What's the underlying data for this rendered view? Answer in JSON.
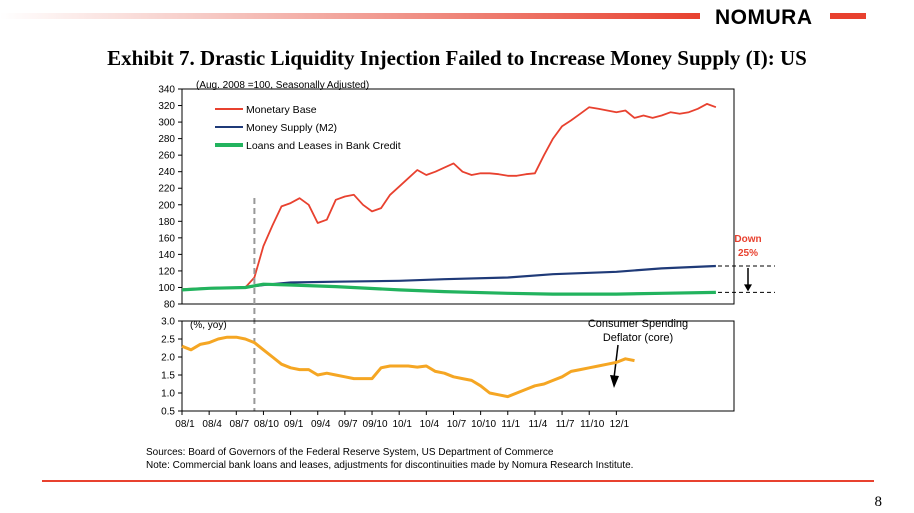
{
  "header": {
    "logo_text": "NOMURA",
    "title": "Exhibit 7.  Drastic Liquidity Injection Failed to Increase Money Supply (I): US"
  },
  "footer": {
    "source_line": "Sources: Board of Governors of the Federal Reserve System, US Department of Commerce",
    "note_line": "Note: Commercial bank loans and leases, adjustments for discontinuities made by Nomura Research Institute.",
    "page_number": "8"
  },
  "colors": {
    "accent": "#e8412f",
    "monetary_base": "#e8412f",
    "money_supply": "#1f3a78",
    "loans": "#22b35e",
    "deflator": "#f5a623"
  },
  "chart_data": [
    {
      "type": "line",
      "unit_note": "(Aug. 2008 =100, Seasonally Adjusted)",
      "ylim": [
        80,
        340
      ],
      "yticks": [
        80,
        100,
        120,
        140,
        160,
        180,
        200,
        220,
        240,
        260,
        280,
        300,
        320,
        340
      ],
      "x_range": [
        "2008-01",
        "2013-02"
      ],
      "legend_position": "top-left",
      "vline_x": "2008-09",
      "annotation": {
        "label_line1": "Down",
        "label_line2": "25%",
        "from": 126,
        "to": 94
      },
      "series": [
        {
          "name": "Monetary Base",
          "color": "#e8412f",
          "points": [
            [
              "2008-01",
              98
            ],
            [
              "2008-03",
              99
            ],
            [
              "2008-05",
              100
            ],
            [
              "2008-07",
              100
            ],
            [
              "2008-08",
              100
            ],
            [
              "2008-09",
              112
            ],
            [
              "2008-10",
              150
            ],
            [
              "2008-11",
              175
            ],
            [
              "2008-12",
              198
            ],
            [
              "2009-01",
              202
            ],
            [
              "2009-02",
              208
            ],
            [
              "2009-03",
              200
            ],
            [
              "2009-04",
              178
            ],
            [
              "2009-05",
              182
            ],
            [
              "2009-06",
              206
            ],
            [
              "2009-07",
              210
            ],
            [
              "2009-08",
              212
            ],
            [
              "2009-09",
              200
            ],
            [
              "2009-10",
              192
            ],
            [
              "2009-11",
              196
            ],
            [
              "2009-12",
              212
            ],
            [
              "2010-01",
              222
            ],
            [
              "2010-02",
              232
            ],
            [
              "2010-03",
              242
            ],
            [
              "2010-04",
              236
            ],
            [
              "2010-05",
              240
            ],
            [
              "2010-06",
              245
            ],
            [
              "2010-07",
              250
            ],
            [
              "2010-08",
              240
            ],
            [
              "2010-09",
              236
            ],
            [
              "2010-10",
              238
            ],
            [
              "2010-11",
              238
            ],
            [
              "2010-12",
              237
            ],
            [
              "2011-01",
              235
            ],
            [
              "2011-02",
              235
            ],
            [
              "2011-03",
              237
            ],
            [
              "2011-04",
              238
            ],
            [
              "2011-05",
              260
            ],
            [
              "2011-06",
              280
            ],
            [
              "2011-07",
              295
            ],
            [
              "2011-08",
              302
            ],
            [
              "2011-09",
              310
            ],
            [
              "2011-10",
              318
            ],
            [
              "2011-11",
              316
            ],
            [
              "2011-12",
              314
            ],
            [
              "2012-01",
              312
            ],
            [
              "2012-02",
              314
            ],
            [
              "2012-03",
              305
            ],
            [
              "2012-04",
              308
            ],
            [
              "2012-05",
              305
            ],
            [
              "2012-06",
              308
            ],
            [
              "2012-07",
              312
            ],
            [
              "2012-08",
              310
            ],
            [
              "2012-09",
              312
            ],
            [
              "2012-10",
              316
            ],
            [
              "2012-11",
              322
            ],
            [
              "2012-12",
              318
            ]
          ]
        },
        {
          "name": "Money Supply (M2)",
          "color": "#1f3a78",
          "points": [
            [
              "2008-01",
              97
            ],
            [
              "2008-04",
              99
            ],
            [
              "2008-08",
              100
            ],
            [
              "2008-10",
              103
            ],
            [
              "2009-01",
              106
            ],
            [
              "2009-06",
              107
            ],
            [
              "2010-01",
              108
            ],
            [
              "2010-06",
              110
            ],
            [
              "2011-01",
              112
            ],
            [
              "2011-06",
              116
            ],
            [
              "2012-01",
              119
            ],
            [
              "2012-06",
              123
            ],
            [
              "2012-12",
              126
            ]
          ]
        },
        {
          "name": "Loans and Leases in Bank Credit",
          "color": "#22b35e",
          "points": [
            [
              "2008-01",
              97
            ],
            [
              "2008-04",
              99
            ],
            [
              "2008-08",
              100
            ],
            [
              "2008-10",
              104
            ],
            [
              "2009-01",
              103
            ],
            [
              "2009-06",
              101
            ],
            [
              "2010-01",
              97
            ],
            [
              "2010-06",
              95
            ],
            [
              "2011-01",
              93
            ],
            [
              "2011-06",
              92
            ],
            [
              "2012-01",
              92
            ],
            [
              "2012-06",
              93
            ],
            [
              "2012-12",
              94
            ]
          ]
        }
      ]
    },
    {
      "type": "line",
      "unit_note": "(%, yoy)",
      "ylim": [
        0.5,
        3.0
      ],
      "yticks": [
        "0.5",
        "1.0",
        "1.5",
        "2.0",
        "2.5",
        "3.0"
      ],
      "x_range": [
        "2008-01",
        "2013-02"
      ],
      "categories": [
        "08/1",
        "08/4",
        "08/7",
        "08/10",
        "09/1",
        "09/4",
        "09/7",
        "09/10",
        "10/1",
        "10/4",
        "10/7",
        "10/10",
        "11/1",
        "11/4",
        "11/7",
        "11/10",
        "12/1"
      ],
      "annotation": {
        "label_line1": "Consumer Spending",
        "label_line2": "Deflator (core)"
      },
      "series": [
        {
          "name": "Consumer Spending Deflator (core)",
          "color": "#f5a623",
          "points": [
            [
              "2008-01",
              2.3
            ],
            [
              "2008-02",
              2.2
            ],
            [
              "2008-03",
              2.35
            ],
            [
              "2008-04",
              2.4
            ],
            [
              "2008-05",
              2.5
            ],
            [
              "2008-06",
              2.55
            ],
            [
              "2008-07",
              2.55
            ],
            [
              "2008-08",
              2.5
            ],
            [
              "2008-09",
              2.4
            ],
            [
              "2008-10",
              2.2
            ],
            [
              "2008-11",
              2.0
            ],
            [
              "2008-12",
              1.8
            ],
            [
              "2009-01",
              1.7
            ],
            [
              "2009-02",
              1.65
            ],
            [
              "2009-03",
              1.65
            ],
            [
              "2009-04",
              1.5
            ],
            [
              "2009-05",
              1.55
            ],
            [
              "2009-06",
              1.5
            ],
            [
              "2009-07",
              1.45
            ],
            [
              "2009-08",
              1.4
            ],
            [
              "2009-09",
              1.4
            ],
            [
              "2009-10",
              1.4
            ],
            [
              "2009-11",
              1.7
            ],
            [
              "2009-12",
              1.75
            ],
            [
              "2010-01",
              1.75
            ],
            [
              "2010-02",
              1.75
            ],
            [
              "2010-03",
              1.72
            ],
            [
              "2010-04",
              1.75
            ],
            [
              "2010-05",
              1.6
            ],
            [
              "2010-06",
              1.55
            ],
            [
              "2010-07",
              1.45
            ],
            [
              "2010-08",
              1.4
            ],
            [
              "2010-09",
              1.35
            ],
            [
              "2010-10",
              1.2
            ],
            [
              "2010-11",
              1.0
            ],
            [
              "2010-12",
              0.95
            ],
            [
              "2011-01",
              0.9
            ],
            [
              "2011-02",
              1.0
            ],
            [
              "2011-03",
              1.1
            ],
            [
              "2011-04",
              1.2
            ],
            [
              "2011-05",
              1.25
            ],
            [
              "2011-06",
              1.35
            ],
            [
              "2011-07",
              1.45
            ],
            [
              "2011-08",
              1.6
            ],
            [
              "2011-09",
              1.65
            ],
            [
              "2011-10",
              1.7
            ],
            [
              "2011-11",
              1.75
            ],
            [
              "2011-12",
              1.8
            ],
            [
              "2012-01",
              1.85
            ],
            [
              "2012-02",
              1.95
            ],
            [
              "2012-03",
              1.9
            ]
          ]
        }
      ]
    }
  ]
}
